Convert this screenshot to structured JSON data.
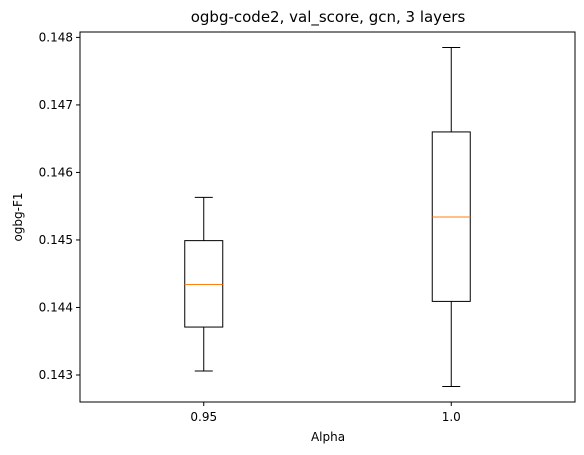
{
  "chart_data": {
    "type": "box",
    "title": "ogbg-code2, val_score, gcn, 3 layers",
    "xlabel": "Alpha",
    "ylabel": "ogbg-F1",
    "ylim": [
      0.1426,
      0.14808
    ],
    "yticks": [
      "0.143",
      "0.144",
      "0.145",
      "0.146",
      "0.147",
      "0.148"
    ],
    "ytick_values": [
      0.143,
      0.144,
      0.145,
      0.146,
      0.147,
      0.148
    ],
    "grid": false,
    "categories": [
      "0.95",
      "1.0"
    ],
    "boxes": [
      {
        "label": "0.95",
        "whisker_low": 0.14306,
        "q1": 0.14371,
        "median": 0.14434,
        "q3": 0.14499,
        "whisker_high": 0.14563
      },
      {
        "label": "1.0",
        "whisker_low": 0.14283,
        "q1": 0.14409,
        "median": 0.14534,
        "q3": 0.1466,
        "whisker_high": 0.14785
      }
    ],
    "colors": {
      "box": "#000000",
      "median": "#ff7f0e"
    }
  }
}
